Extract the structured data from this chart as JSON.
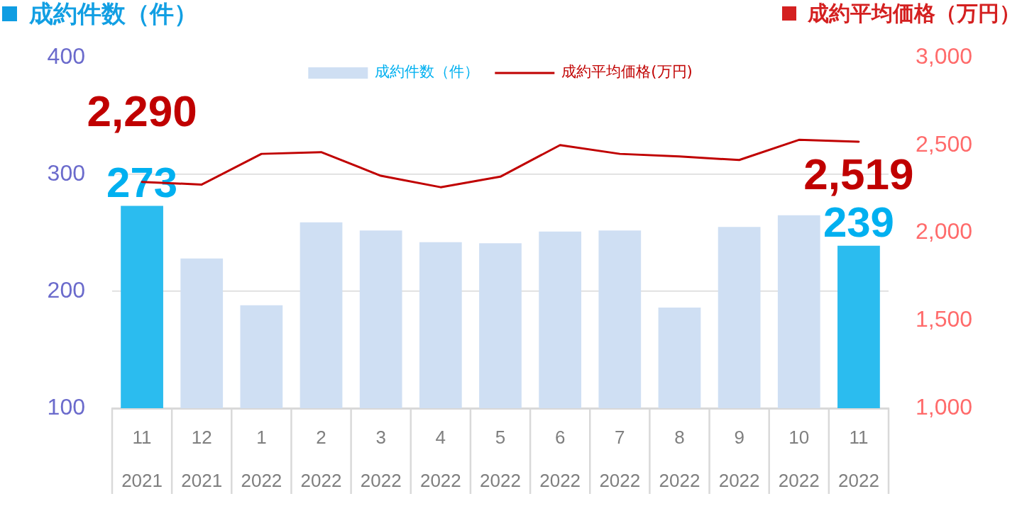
{
  "chart_data": {
    "type": "bar",
    "ylabel": "成約件数（件）",
    "y2label": "成約平均価格（万円）",
    "categories": [
      "11\n2021",
      "12\n2021",
      "1\n2022",
      "2\n2022",
      "3\n2022",
      "4\n2022",
      "5\n2022",
      "6\n2022",
      "7\n2022",
      "8\n2022",
      "9\n2022",
      "10\n2022",
      "11\n2022"
    ],
    "series": [
      {
        "name": "成約件数（件）",
        "color": "#cfdff3",
        "colors": [
          "#2bbcef",
          "#cfdff3",
          "#cfdff3",
          "#cfdff3",
          "#cfdff3",
          "#cfdff3",
          "#cfdff3",
          "#cfdff3",
          "#cfdff3",
          "#cfdff3",
          "#cfdff3",
          "#cfdff3",
          "#2bbcef"
        ],
        "values": [
          273,
          228,
          188,
          259,
          252,
          242,
          241,
          251,
          252,
          186,
          255,
          265,
          239
        ],
        "value_labels": [
          "273",
          null,
          null,
          null,
          null,
          null,
          null,
          null,
          null,
          null,
          null,
          null,
          "239"
        ]
      },
      {
        "name": "成約平均価格(万円)",
        "type": "line",
        "axis": "y2",
        "color": "#c00000",
        "values": [
          2290,
          2275,
          2450,
          2460,
          2325,
          2260,
          2320,
          2500,
          2450,
          2435,
          2415,
          2530,
          2519
        ],
        "value_labels": [
          "2,290",
          null,
          null,
          null,
          null,
          null,
          null,
          null,
          null,
          null,
          null,
          null,
          "2,519"
        ]
      }
    ],
    "ylim": [
      100,
      400
    ],
    "yticks": [
      100,
      200,
      300,
      400
    ],
    "y2lim": [
      1000,
      3000
    ],
    "y2ticks": [
      {
        "value": 1000,
        "label": "1,000"
      },
      {
        "value": 1500,
        "label": "1,500"
      },
      {
        "value": 2000,
        "label": "2,000"
      },
      {
        "value": 2500,
        "label": "2,500"
      },
      {
        "value": 3000,
        "label": "3,000"
      }
    ],
    "grid": "y",
    "legend": "top"
  }
}
